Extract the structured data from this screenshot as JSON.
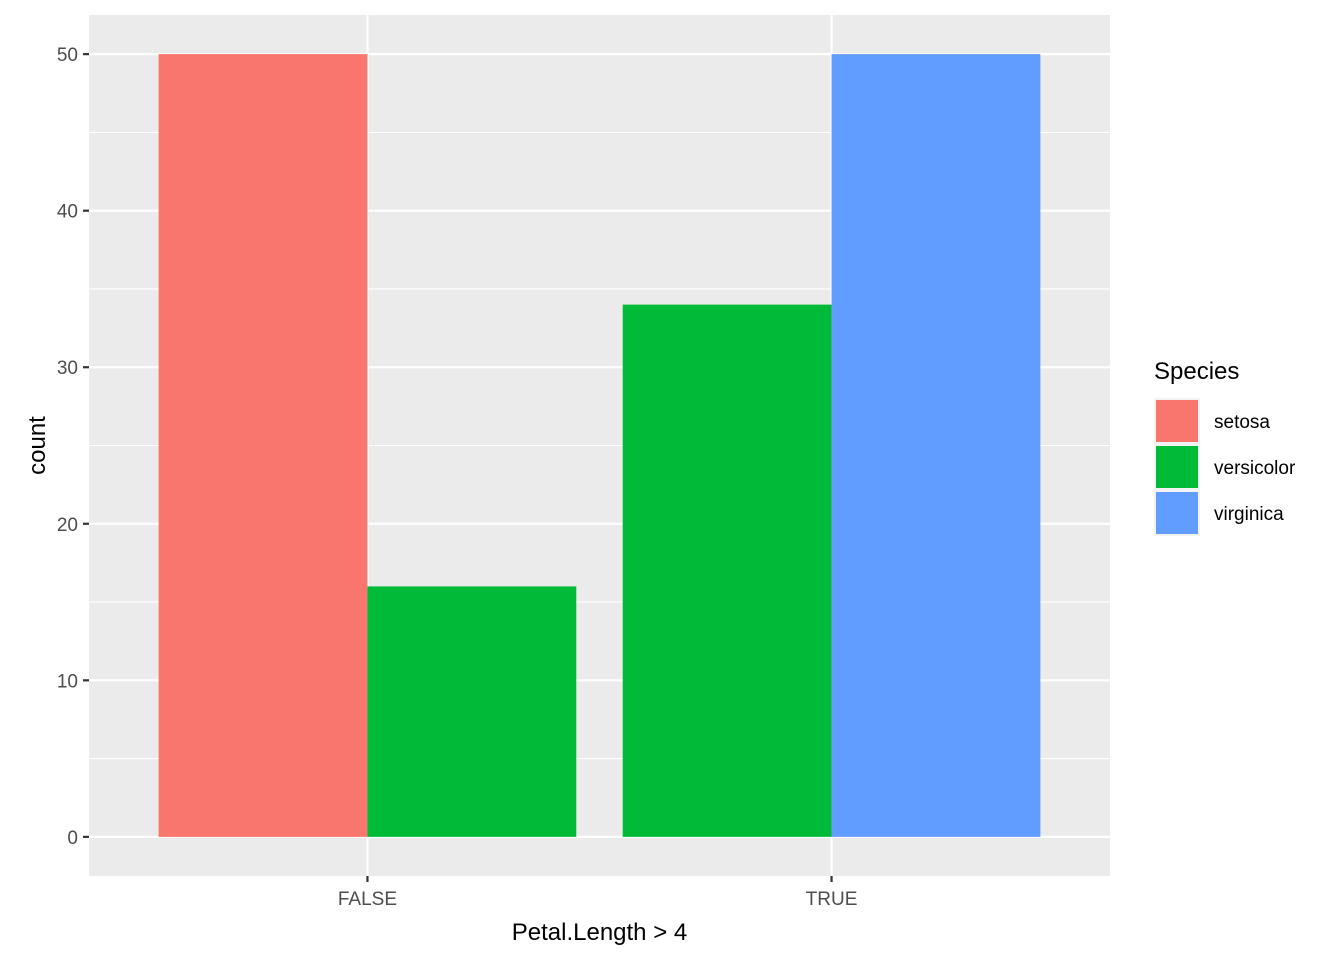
{
  "chart_data": {
    "type": "bar",
    "categories": [
      "FALSE",
      "TRUE"
    ],
    "series": [
      {
        "name": "setosa",
        "values": [
          50,
          0
        ],
        "color": "#F8766D"
      },
      {
        "name": "versicolor",
        "values": [
          16,
          34
        ],
        "color": "#00BA38"
      },
      {
        "name": "virginica",
        "values": [
          0,
          50
        ],
        "color": "#619CFF"
      }
    ],
    "xlabel": "Petal.Length > 4",
    "ylabel": "count",
    "ylim": [
      -2.5,
      52.5
    ],
    "yticks": [
      0,
      10,
      20,
      30,
      40,
      50
    ],
    "grid": true,
    "legend": {
      "title": "Species",
      "placement": "right"
    },
    "panel_background": "#EBEBEB",
    "grid_color": "#FFFFFF"
  }
}
